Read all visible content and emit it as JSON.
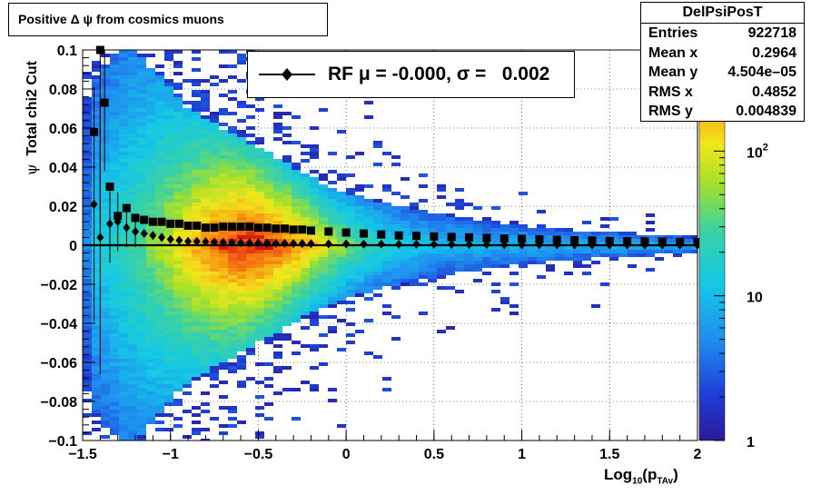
{
  "title": "Positive Δ ψ from cosmics muons",
  "stats": {
    "name": "DelPsiPosT",
    "rows": [
      {
        "label": "Entries",
        "value": "922718"
      },
      {
        "label": "Mean x",
        "value": "0.2964"
      },
      {
        "label": "Mean y",
        "value": "4.504e–05"
      },
      {
        "label": "RMS x",
        "value": "0.4852"
      },
      {
        "label": "RMS y",
        "value": "0.004839"
      }
    ]
  },
  "legend": {
    "text": "RF μ = -0.000, σ =   0.002"
  },
  "axes": {
    "x_label_main": "Log",
    "x_label_sub": "10",
    "x_label_paren": "(p",
    "x_label_sub2": "TAv",
    "x_label_close": ")",
    "y_label_sym": "ψ",
    "y_label_text": "Total chi2 Cut",
    "x_ticks": [
      "−1.5",
      "−1",
      "−0.5",
      "0",
      "0.5",
      "1",
      "1.5",
      "2"
    ],
    "y_ticks": [
      "0.1",
      "0.08",
      "0.06",
      "0.04",
      "0.02",
      "0",
      "−0.02",
      "−0.04",
      "−0.06",
      "−0.08",
      "−0.1"
    ],
    "z_ticks": [
      "10²",
      "10",
      "1"
    ]
  },
  "chart_data": {
    "type": "heatmap",
    "title": "Positive Δ ψ from cosmics muons",
    "xlabel": "Log10(pTAv)",
    "ylabel": "ψ Total chi2 Cut",
    "xlim": [
      -1.5,
      2.0
    ],
    "ylim": [
      -0.1,
      0.1
    ],
    "zscale": "log",
    "zlim": [
      1,
      500
    ],
    "colormap": "rainbow",
    "legend_position": "top-center",
    "grid": true,
    "width_profile": {
      "x": [
        -1.45,
        -1.4,
        -1.3,
        -1.2,
        -1.1,
        -1.0,
        -0.9,
        -0.8,
        -0.7,
        -0.6,
        -0.5,
        -0.4,
        -0.3,
        -0.2,
        -0.1,
        0.0,
        0.2,
        0.4,
        0.6,
        0.8,
        1.0,
        1.2,
        1.4,
        1.6,
        1.8,
        2.0
      ],
      "half_width": [
        0.08,
        0.09,
        0.1,
        0.1,
        0.09,
        0.08,
        0.07,
        0.065,
        0.06,
        0.055,
        0.05,
        0.045,
        0.04,
        0.035,
        0.03,
        0.027,
        0.022,
        0.018,
        0.015,
        0.012,
        0.01,
        0.008,
        0.007,
        0.006,
        0.005,
        0.004
      ]
    },
    "series": [
      {
        "name": "RF σ",
        "marker": "square",
        "x": [
          -1.435,
          -1.4,
          -1.375,
          -1.345,
          -1.3,
          -1.25,
          -1.2,
          -1.15,
          -1.1,
          -1.05,
          -1.0,
          -0.95,
          -0.9,
          -0.85,
          -0.8,
          -0.75,
          -0.7,
          -0.65,
          -0.6,
          -0.55,
          -0.5,
          -0.45,
          -0.4,
          -0.35,
          -0.3,
          -0.25,
          -0.2,
          -0.1,
          0.0,
          0.1,
          0.2,
          0.3,
          0.4,
          0.5,
          0.6,
          0.7,
          0.8,
          0.9,
          1.0,
          1.1,
          1.2,
          1.3,
          1.4,
          1.5,
          1.6,
          1.7,
          1.8,
          1.9,
          2.0
        ],
        "y": [
          0.058,
          0.1,
          0.073,
          0.03,
          0.015,
          0.019,
          0.014,
          0.013,
          0.012,
          0.012,
          0.011,
          0.011,
          0.01,
          0.01,
          0.009,
          0.009,
          0.0095,
          0.0095,
          0.0095,
          0.0095,
          0.009,
          0.009,
          0.0085,
          0.0085,
          0.008,
          0.008,
          0.0075,
          0.007,
          0.0065,
          0.006,
          0.0055,
          0.005,
          0.0048,
          0.0045,
          0.0042,
          0.004,
          0.0037,
          0.0035,
          0.0033,
          0.003,
          0.0028,
          0.0026,
          0.0024,
          0.0022,
          0.002,
          0.0019,
          0.0018,
          0.0017,
          0.0016
        ],
        "err": [
          0,
          0.09,
          0.035,
          0,
          0,
          0,
          0,
          0,
          0,
          0,
          0,
          0,
          0,
          0,
          0,
          0,
          0,
          0,
          0,
          0,
          0,
          0,
          0,
          0,
          0,
          0,
          0,
          0,
          0,
          0,
          0,
          0,
          0,
          0,
          0,
          0,
          0,
          0,
          0,
          0,
          0,
          0,
          0,
          0,
          0,
          0,
          0,
          0,
          0
        ]
      },
      {
        "name": "RF μ",
        "marker": "diamond",
        "x": [
          -1.435,
          -1.4,
          -1.345,
          -1.3,
          -1.25,
          -1.2,
          -1.15,
          -1.1,
          -1.05,
          -1.0,
          -0.95,
          -0.9,
          -0.85,
          -0.8,
          -0.75,
          -0.7,
          -0.65,
          -0.6,
          -0.55,
          -0.5,
          -0.45,
          -0.4,
          -0.35,
          -0.3,
          -0.25,
          -0.2,
          -0.1,
          0.0,
          0.1,
          0.2,
          0.3,
          0.4,
          0.5,
          0.6,
          0.7,
          0.8,
          0.9,
          1.0,
          1.1,
          1.2,
          1.3,
          1.4,
          1.5,
          1.6,
          1.7,
          1.8,
          1.9,
          2.0
        ],
        "y": [
          0.021,
          0.004,
          0.011,
          0.012,
          0.009,
          0.007,
          0.006,
          0.005,
          0.004,
          0.003,
          0.0025,
          0.002,
          0.002,
          0.0018,
          0.0016,
          0.0015,
          0.0014,
          0.0013,
          0.0012,
          0.0012,
          0.0011,
          0.001,
          0.001,
          0.0009,
          0.0009,
          0.0008,
          0.0007,
          0.0007,
          0.0006,
          0.0006,
          0.0005,
          0.0005,
          0.0005,
          0.0004,
          0.0004,
          0.0004,
          0.0003,
          0.0003,
          0.0003,
          0.0003,
          0.0002,
          0.0002,
          0.0002,
          0.0002,
          0.0002,
          0.0001,
          0.0001,
          0.0001
        ],
        "err": [
          0.06,
          0.07,
          0.02,
          0.015,
          0.01,
          0.008,
          0,
          0,
          0,
          0,
          0,
          0,
          0,
          0,
          0,
          0,
          0,
          0,
          0,
          0,
          0,
          0,
          0,
          0,
          0,
          0,
          0,
          0,
          0,
          0,
          0,
          0,
          0,
          0,
          0,
          0,
          0,
          0,
          0,
          0,
          0,
          0,
          0,
          0,
          0,
          0,
          0,
          0
        ]
      }
    ]
  }
}
